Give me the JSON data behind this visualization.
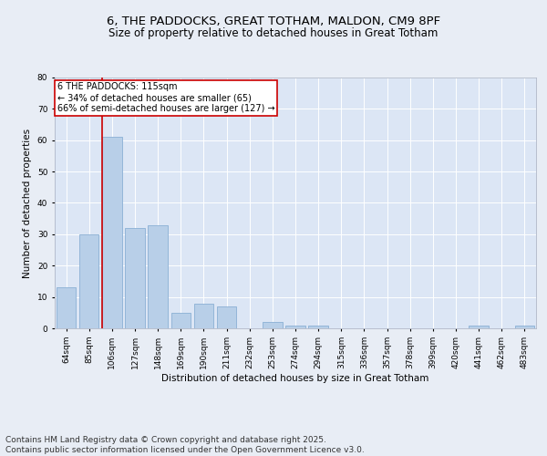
{
  "title_line1": "6, THE PADDOCKS, GREAT TOTHAM, MALDON, CM9 8PF",
  "title_line2": "Size of property relative to detached houses in Great Totham",
  "xlabel": "Distribution of detached houses by size in Great Totham",
  "ylabel": "Number of detached properties",
  "categories": [
    "64sqm",
    "85sqm",
    "106sqm",
    "127sqm",
    "148sqm",
    "169sqm",
    "190sqm",
    "211sqm",
    "232sqm",
    "253sqm",
    "274sqm",
    "294sqm",
    "315sqm",
    "336sqm",
    "357sqm",
    "378sqm",
    "399sqm",
    "420sqm",
    "441sqm",
    "462sqm",
    "483sqm"
  ],
  "values": [
    13,
    30,
    61,
    32,
    33,
    5,
    8,
    7,
    0,
    2,
    1,
    1,
    0,
    0,
    0,
    0,
    0,
    0,
    1,
    0,
    1
  ],
  "bar_color": "#b8cfe8",
  "bar_edge_color": "#8aafd4",
  "vline_index": 2,
  "vline_color": "#cc0000",
  "annotation_text": "6 THE PADDOCKS: 115sqm\n← 34% of detached houses are smaller (65)\n66% of semi-detached houses are larger (127) →",
  "annotation_box_color": "#ffffff",
  "annotation_box_edge_color": "#cc0000",
  "ylim": [
    0,
    80
  ],
  "yticks": [
    0,
    10,
    20,
    30,
    40,
    50,
    60,
    70,
    80
  ],
  "bg_color": "#e8edf5",
  "plot_bg_color": "#dce6f5",
  "grid_color": "#ffffff",
  "footer_text": "Contains HM Land Registry data © Crown copyright and database right 2025.\nContains public sector information licensed under the Open Government Licence v3.0.",
  "title_fontsize": 9.5,
  "subtitle_fontsize": 8.5,
  "axis_label_fontsize": 7.5,
  "tick_fontsize": 6.5,
  "annotation_fontsize": 7,
  "footer_fontsize": 6.5
}
